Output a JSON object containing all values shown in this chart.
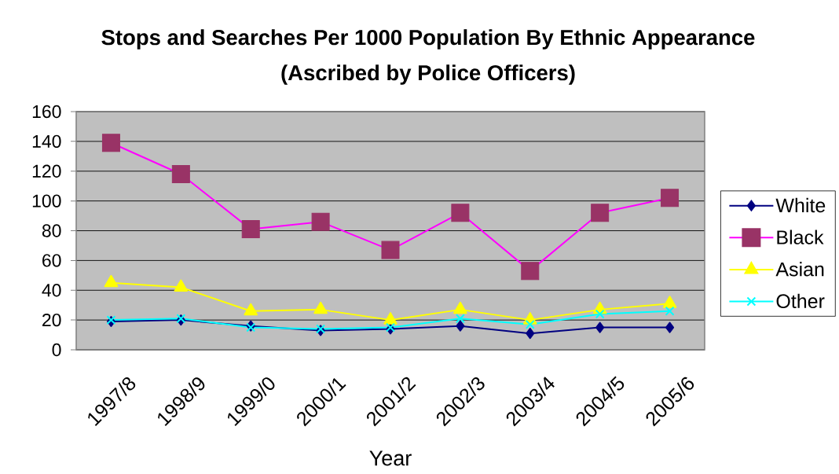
{
  "chart_data": {
    "type": "line",
    "title": "Stops and Searches Per 1000 Population By Ethnic Appearance",
    "subtitle": "(Ascribed by Police Officers)",
    "xlabel": "Year",
    "categories": [
      "1997/8",
      "1998/9",
      "1999/0",
      "2000/1",
      "2001/2",
      "2002/3",
      "2003/4",
      "2004/5",
      "2005/6"
    ],
    "series": [
      {
        "name": "White",
        "color": "#000080",
        "marker": "diamond",
        "values": [
          19,
          20,
          16,
          13,
          14,
          16,
          11,
          15,
          15
        ]
      },
      {
        "name": "Black",
        "color": "#ff00ff",
        "marker": "square",
        "colors": [
          "#993366",
          "#993366",
          "#993366",
          "#993366",
          "#993366",
          "#993366",
          "#993366",
          "#993366",
          "#993366"
        ],
        "values": [
          139,
          118,
          81,
          86,
          67,
          92,
          53,
          92,
          102
        ]
      },
      {
        "name": "Asian",
        "color": "#ffff00",
        "marker": "triangle",
        "values": [
          45,
          42,
          26,
          27,
          20,
          27,
          20,
          27,
          31
        ]
      },
      {
        "name": "Other",
        "color": "#00ffff",
        "marker": "cross",
        "values": [
          20,
          21,
          15,
          14,
          15,
          21,
          17,
          24,
          26
        ]
      }
    ],
    "ylim": [
      0,
      160
    ],
    "yticks": [
      0,
      20,
      40,
      60,
      80,
      100,
      120,
      140,
      160
    ],
    "grid": "y",
    "legend": "right"
  }
}
